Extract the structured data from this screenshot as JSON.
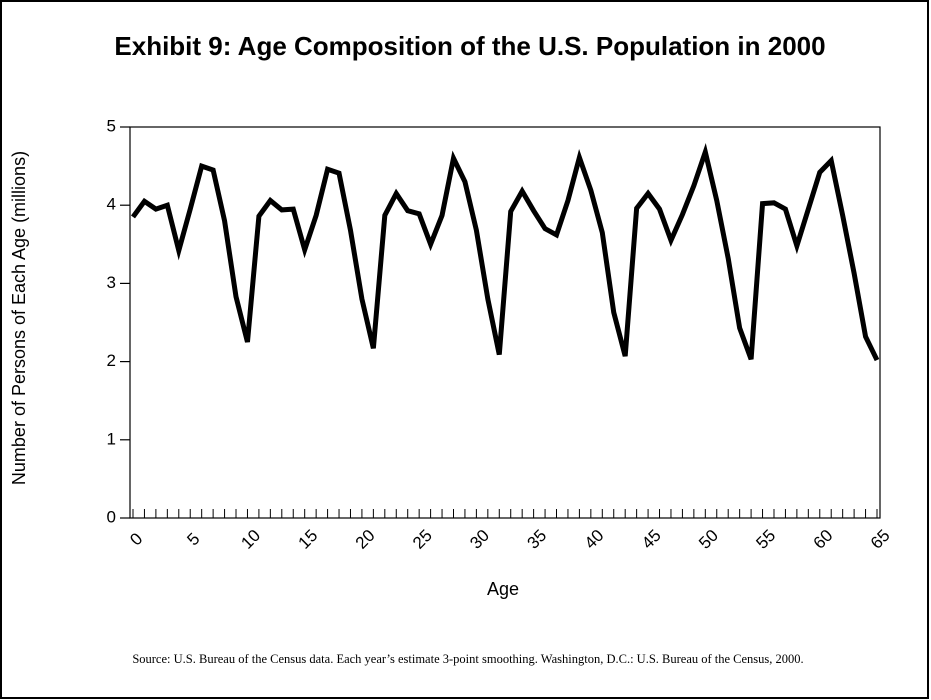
{
  "chart_data": {
    "type": "line",
    "title": "Exhibit 9: Age Composition of the U.S. Population in 2000",
    "x_label": "Age",
    "y_label": "Number of Persons of Each Age (millions)",
    "source": "Source: U.S. Bureau of the Census data. Each year’s estimate 3-point smoothing. Washington, D.C.: U.S. Bureau of the Census, 2000.",
    "x": [
      0,
      1,
      2,
      3,
      4,
      5,
      6,
      7,
      8,
      9,
      10,
      11,
      12,
      13,
      14,
      15,
      16,
      17,
      18,
      19,
      20,
      21,
      22,
      23,
      24,
      25,
      26,
      27,
      28,
      29,
      30,
      31,
      32,
      33,
      34,
      35,
      36,
      37,
      38,
      39,
      40,
      41,
      42,
      43,
      44,
      45,
      46,
      47,
      48,
      49,
      50,
      51,
      52,
      53,
      54,
      55,
      56,
      57,
      58,
      59,
      60,
      61,
      62,
      63,
      64,
      65
    ],
    "series": [
      {
        "color": "#000000",
        "values": [
          3.85,
          4.05,
          3.95,
          4.0,
          3.42,
          3.95,
          4.5,
          4.45,
          3.8,
          2.83,
          2.25,
          3.86,
          4.06,
          3.94,
          3.95,
          3.43,
          3.87,
          4.46,
          4.41,
          3.68,
          2.8,
          2.17,
          3.87,
          4.15,
          3.93,
          3.89,
          3.5,
          3.87,
          4.6,
          4.3,
          3.68,
          2.8,
          2.09,
          3.92,
          4.18,
          3.93,
          3.7,
          3.62,
          4.06,
          4.61,
          4.19,
          3.65,
          2.63,
          2.07,
          3.96,
          4.15,
          3.95,
          3.55,
          3.88,
          4.25,
          4.68,
          4.06,
          3.32,
          2.43,
          2.03,
          4.02,
          4.03,
          3.95,
          3.48,
          3.95,
          4.42,
          4.57,
          3.87,
          3.13,
          2.32,
          2.02
        ]
      }
    ],
    "xlim": [
      0,
      65
    ],
    "xticks": [
      0,
      5,
      10,
      15,
      20,
      25,
      30,
      35,
      40,
      45,
      50,
      55,
      60,
      65
    ],
    "xminorticks": [
      0,
      1,
      2,
      3,
      4,
      5,
      6,
      7,
      8,
      9,
      10,
      11,
      12,
      13,
      14,
      15,
      16,
      17,
      18,
      19,
      20,
      21,
      22,
      23,
      24,
      25,
      26,
      27,
      28,
      29,
      30,
      31,
      32,
      33,
      34,
      35,
      36,
      37,
      38,
      39,
      40,
      41,
      42,
      43,
      44,
      45,
      46,
      47,
      48,
      49,
      50,
      51,
      52,
      53,
      54,
      55,
      56,
      57,
      58,
      59,
      60,
      61,
      62,
      63,
      64,
      65
    ],
    "ylim": [
      0,
      5
    ],
    "yticks": [
      0,
      1,
      2,
      3,
      4,
      5
    ]
  }
}
